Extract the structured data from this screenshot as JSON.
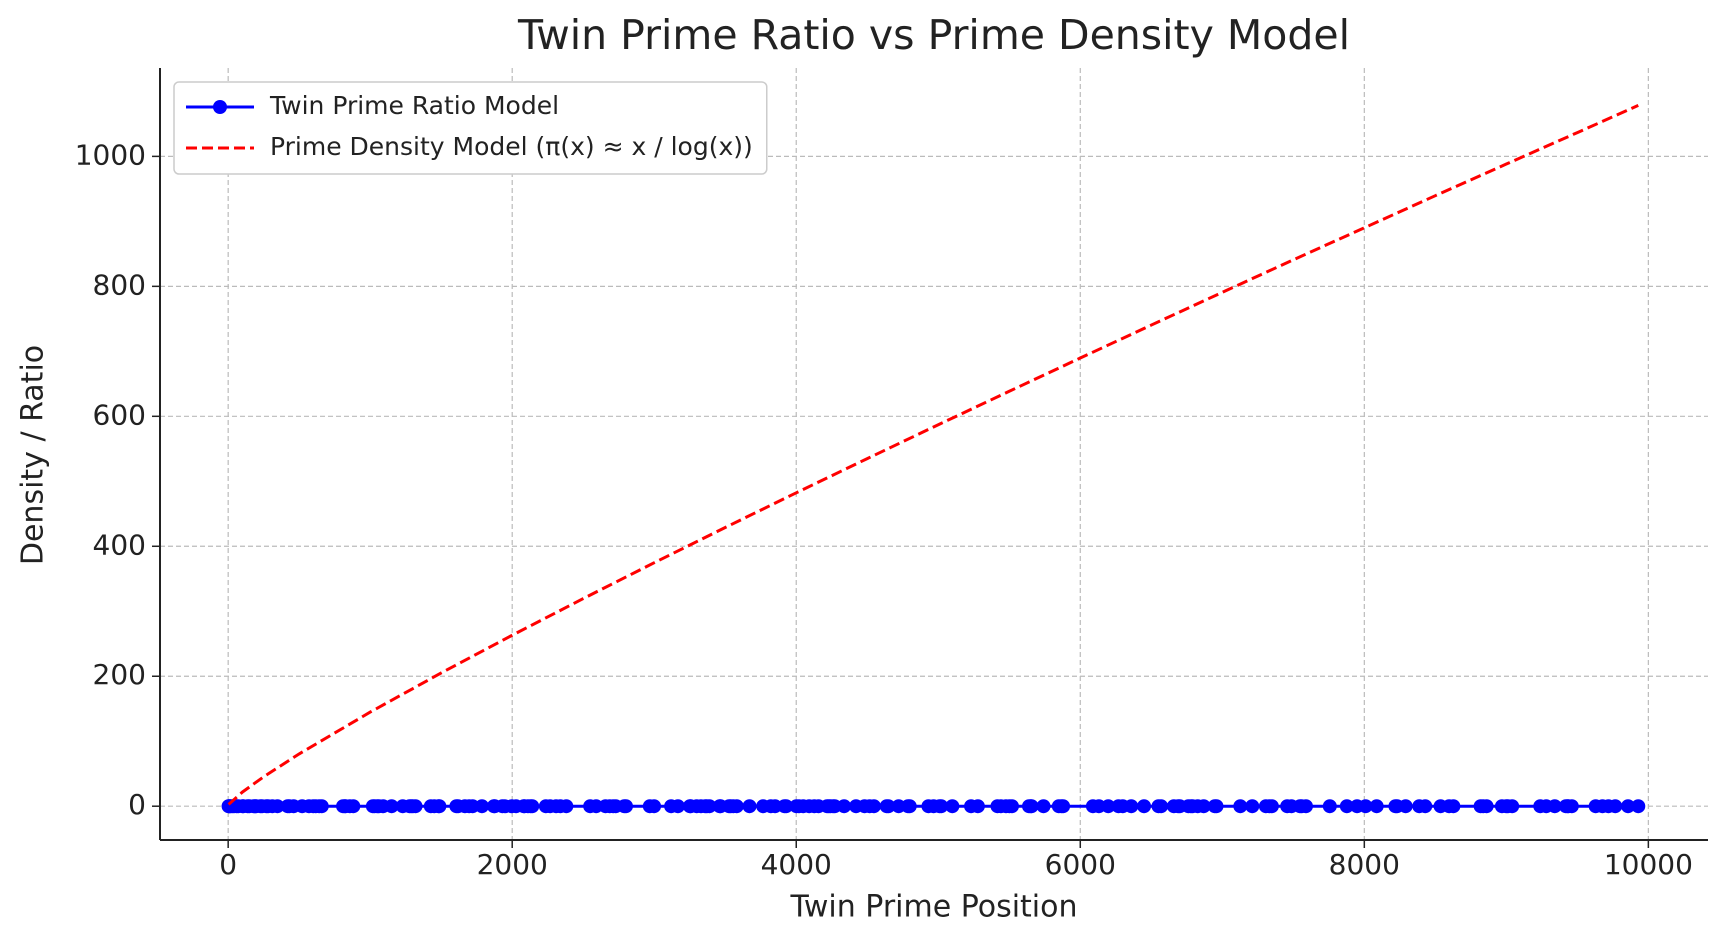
{
  "chart_data": {
    "type": "line",
    "title": "Twin Prime Ratio vs Prime Density Model",
    "xlabel": "Twin Prime Position",
    "ylabel": "Density / Ratio",
    "xlim": [
      -480,
      10420
    ],
    "ylim": [
      -52,
      1136
    ],
    "xticks": [
      0,
      2000,
      4000,
      6000,
      8000,
      10000
    ],
    "yticks": [
      0,
      200,
      400,
      600,
      800,
      1000
    ],
    "grid": true,
    "legend": "upper left",
    "series": [
      {
        "name": "Twin Prime Ratio Model",
        "color": "#0000ff",
        "linestyle": "solid",
        "marker": true,
        "x": [
          3,
          5,
          11,
          17,
          29,
          41,
          59,
          71,
          101,
          107,
          137,
          149,
          179,
          191,
          197,
          227,
          239,
          269,
          281,
          311,
          347,
          419,
          431,
          461,
          521,
          569,
          599,
          617,
          641,
          659,
          809,
          821,
          827,
          857,
          881,
          1019,
          1031,
          1049,
          1061,
          1091,
          1151,
          1229,
          1277,
          1289,
          1301,
          1319,
          1427,
          1451,
          1481,
          1487,
          1607,
          1619,
          1667,
          1697,
          1721,
          1787,
          1871,
          1877,
          1931,
          1949,
          1997,
          2027,
          2081,
          2087,
          2111,
          2129,
          2141,
          2237,
          2267,
          2309,
          2339,
          2381,
          2549,
          2591,
          2657,
          2687,
          2711,
          2729,
          2789,
          2801,
          2969,
          2999,
          3119,
          3167,
          3251,
          3257,
          3299,
          3329,
          3359,
          3371,
          3389,
          3461,
          3467,
          3527,
          3539,
          3557,
          3581,
          3671,
          3767,
          3821,
          3851,
          3917,
          3929,
          4001,
          4019,
          4049,
          4091,
          4127,
          4157,
          4217,
          4229,
          4241,
          4259,
          4271,
          4337,
          4421,
          4481,
          4517,
          4547,
          4637,
          4649,
          4721,
          4787,
          4799,
          4931,
          4967,
          5009,
          5021,
          5099,
          5231,
          5279,
          5417,
          5441,
          5477,
          5501,
          5519,
          5639,
          5651,
          5657,
          5741,
          5849,
          5867,
          5879,
          6089,
          6131,
          6197,
          6269,
          6299,
          6359,
          6449,
          6551,
          6569,
          6659,
          6689,
          6701,
          6761,
          6779,
          6791,
          6827,
          6869,
          6947,
          6959,
          7127,
          7211,
          7307,
          7331,
          7349,
          7457,
          7487,
          7547,
          7559,
          7589,
          7757,
          7877,
          7949,
          8009,
          8087,
          8219,
          8231,
          8291,
          8387,
          8429,
          8537,
          8597,
          8627,
          8819,
          8837,
          8861,
          8969,
          8999,
          9011,
          9041,
          9239,
          9281,
          9341,
          9419,
          9431,
          9437,
          9461,
          9629,
          9677,
          9719,
          9767,
          9857,
          9929
        ],
        "values": [
          0,
          0,
          0,
          0,
          0,
          0,
          0,
          0,
          0,
          0,
          0,
          0,
          0,
          0,
          0,
          0,
          0,
          0,
          0,
          0,
          0,
          0,
          0,
          0,
          0,
          0,
          0,
          0,
          0,
          0,
          0,
          0,
          0,
          0,
          0,
          0,
          0,
          0,
          0,
          0,
          0,
          0,
          0,
          0,
          0,
          0,
          0,
          0,
          0,
          0,
          0,
          0,
          0,
          0,
          0,
          0,
          0,
          0,
          0,
          0,
          0,
          0,
          0,
          0,
          0,
          0,
          0,
          0,
          0,
          0,
          0,
          0,
          0,
          0,
          0,
          0,
          0,
          0,
          0,
          0,
          0,
          0,
          0,
          0,
          0,
          0,
          0,
          0,
          0,
          0,
          0,
          0,
          0,
          0,
          0,
          0,
          0,
          0,
          0,
          0,
          0,
          0,
          0,
          0,
          0,
          0,
          0,
          0,
          0,
          0,
          0,
          0,
          0,
          0,
          0,
          0,
          0,
          0,
          0,
          0,
          0,
          0,
          0,
          0,
          0,
          0,
          0,
          0,
          0,
          0,
          0,
          0,
          0,
          0,
          0,
          0,
          0,
          0,
          0,
          0,
          0,
          0,
          0,
          0,
          0,
          0,
          0,
          0,
          0,
          0,
          0,
          0,
          0,
          0,
          0,
          0,
          0,
          0,
          0,
          0,
          0,
          0,
          0,
          0,
          0,
          0,
          0,
          0,
          0,
          0,
          0,
          0,
          0,
          0,
          0,
          0,
          0,
          0,
          0,
          0,
          0,
          0,
          0,
          0,
          0,
          0,
          0,
          0,
          0,
          0,
          0,
          0,
          0,
          0,
          0,
          0,
          0,
          0,
          0,
          0,
          0,
          0,
          0,
          0,
          0
        ]
      },
      {
        "name": "Prime Density Model (π(x) ≈ x / log(x))",
        "color": "#ff0000",
        "linestyle": "dashed",
        "marker": false,
        "x": [
          3,
          100,
          250,
          500,
          1000,
          1500,
          2000,
          2500,
          3000,
          3500,
          4000,
          4500,
          5000,
          5500,
          6000,
          6500,
          7000,
          7500,
          8000,
          8500,
          9000,
          9500,
          9929
        ],
        "values": [
          2.73,
          21.7,
          45.3,
          80.5,
          144.8,
          205.1,
          263.1,
          319.5,
          374.7,
          428.9,
          482.3,
          534.9,
          587.0,
          638.5,
          689.7,
          740.4,
          790.8,
          840.8,
          890.1,
          939.5,
          988.2,
          1036.6,
          1078.4
        ]
      }
    ]
  }
}
